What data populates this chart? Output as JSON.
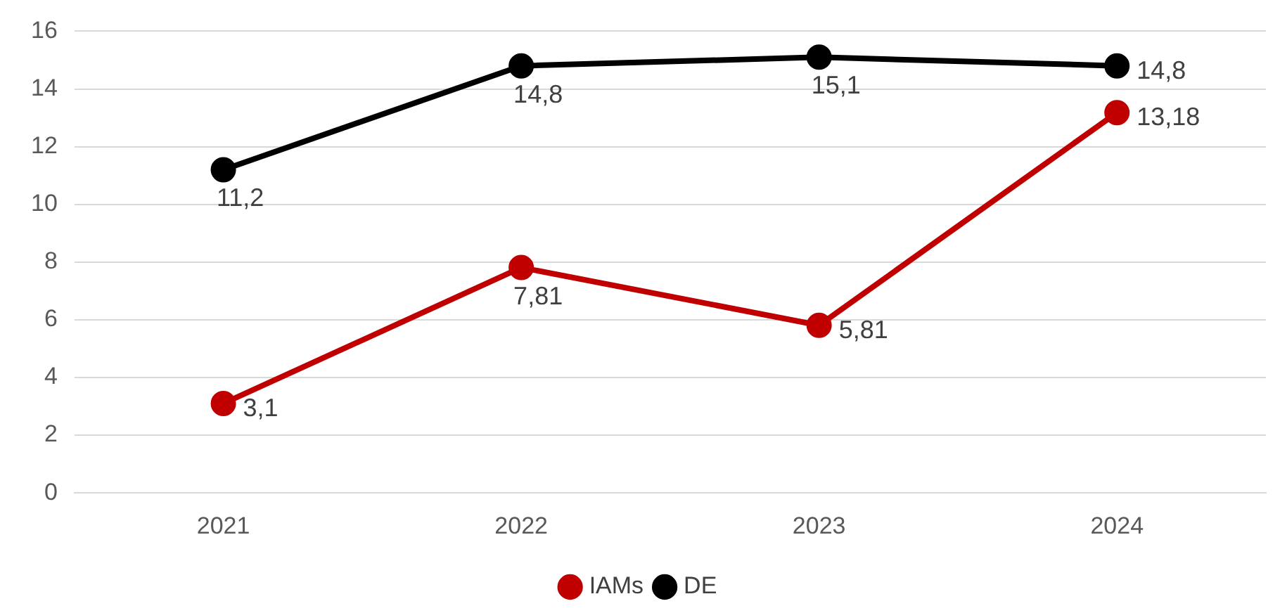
{
  "chart_data": {
    "type": "line",
    "categories": [
      "2021",
      "2022",
      "2023",
      "2024"
    ],
    "series": [
      {
        "name": "IAMs",
        "color": "#c00000",
        "values": [
          3.1,
          7.81,
          5.81,
          13.18
        ],
        "value_labels": [
          "3,1",
          "7,81",
          "5,81",
          "13,18"
        ]
      },
      {
        "name": "DE",
        "color": "#000000",
        "values": [
          11.2,
          14.8,
          15.1,
          14.8
        ],
        "value_labels": [
          "11,2",
          "14,8",
          "15,1",
          "14,8"
        ]
      }
    ],
    "ylim": [
      0,
      16
    ],
    "yticks": [
      0,
      2,
      4,
      6,
      8,
      10,
      12,
      14,
      16
    ],
    "grid": "y",
    "legend": "bottom",
    "marker": "circle",
    "line_style": "solid"
  }
}
